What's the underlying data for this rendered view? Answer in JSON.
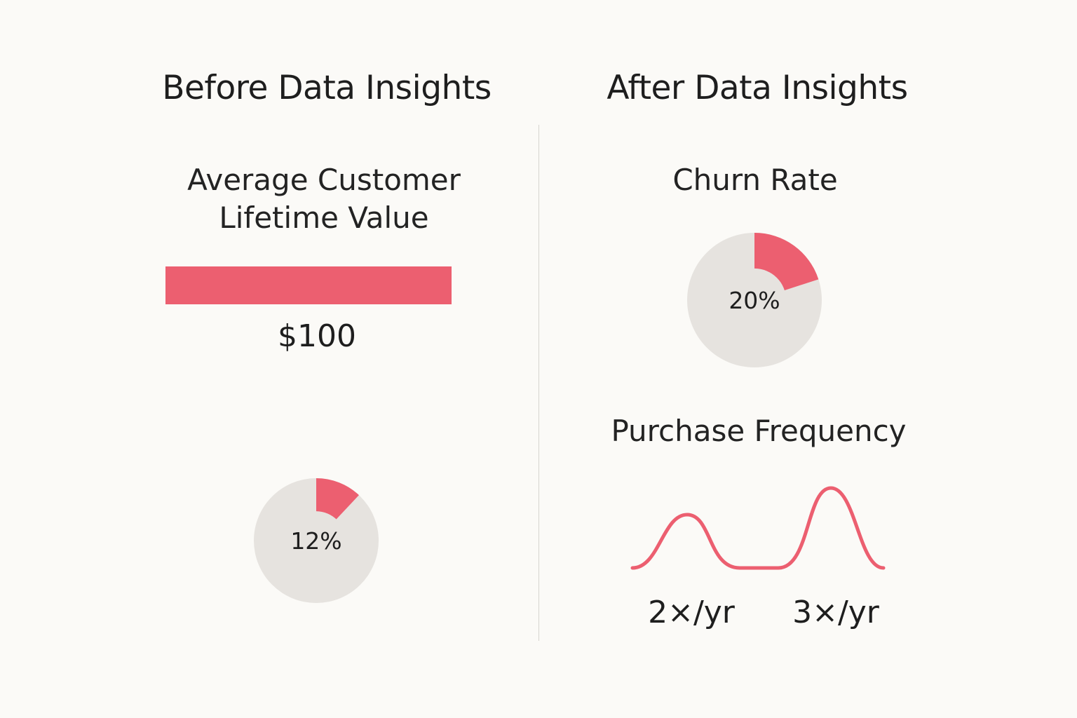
{
  "colors": {
    "accent": "#ec5f70",
    "track": "#e6e3df",
    "background": "#fbfaf7",
    "text": "#1e1e1e",
    "divider": "#d6d4cf"
  },
  "panels": {
    "before": {
      "heading": "Before Data Insights"
    },
    "after": {
      "heading": "After Data Insights"
    }
  },
  "chart_data": [
    {
      "type": "bar",
      "panel": "before",
      "title_line1": "Average Customer",
      "title_line2": "Lifetime Value",
      "categories": [
        ""
      ],
      "values": [
        100
      ],
      "value_label": "$100"
    },
    {
      "type": "pie",
      "panel": "before",
      "title": "",
      "values": [
        12,
        88
      ],
      "value_label": "12%"
    },
    {
      "type": "pie",
      "panel": "after",
      "title": "Churn Rate",
      "values": [
        20,
        80
      ],
      "value_label": "20%"
    },
    {
      "type": "line",
      "panel": "after",
      "title": "Purchase Frequency",
      "categories": [
        "2×/yr",
        "3×/yr"
      ],
      "values": [
        2,
        3
      ]
    }
  ]
}
